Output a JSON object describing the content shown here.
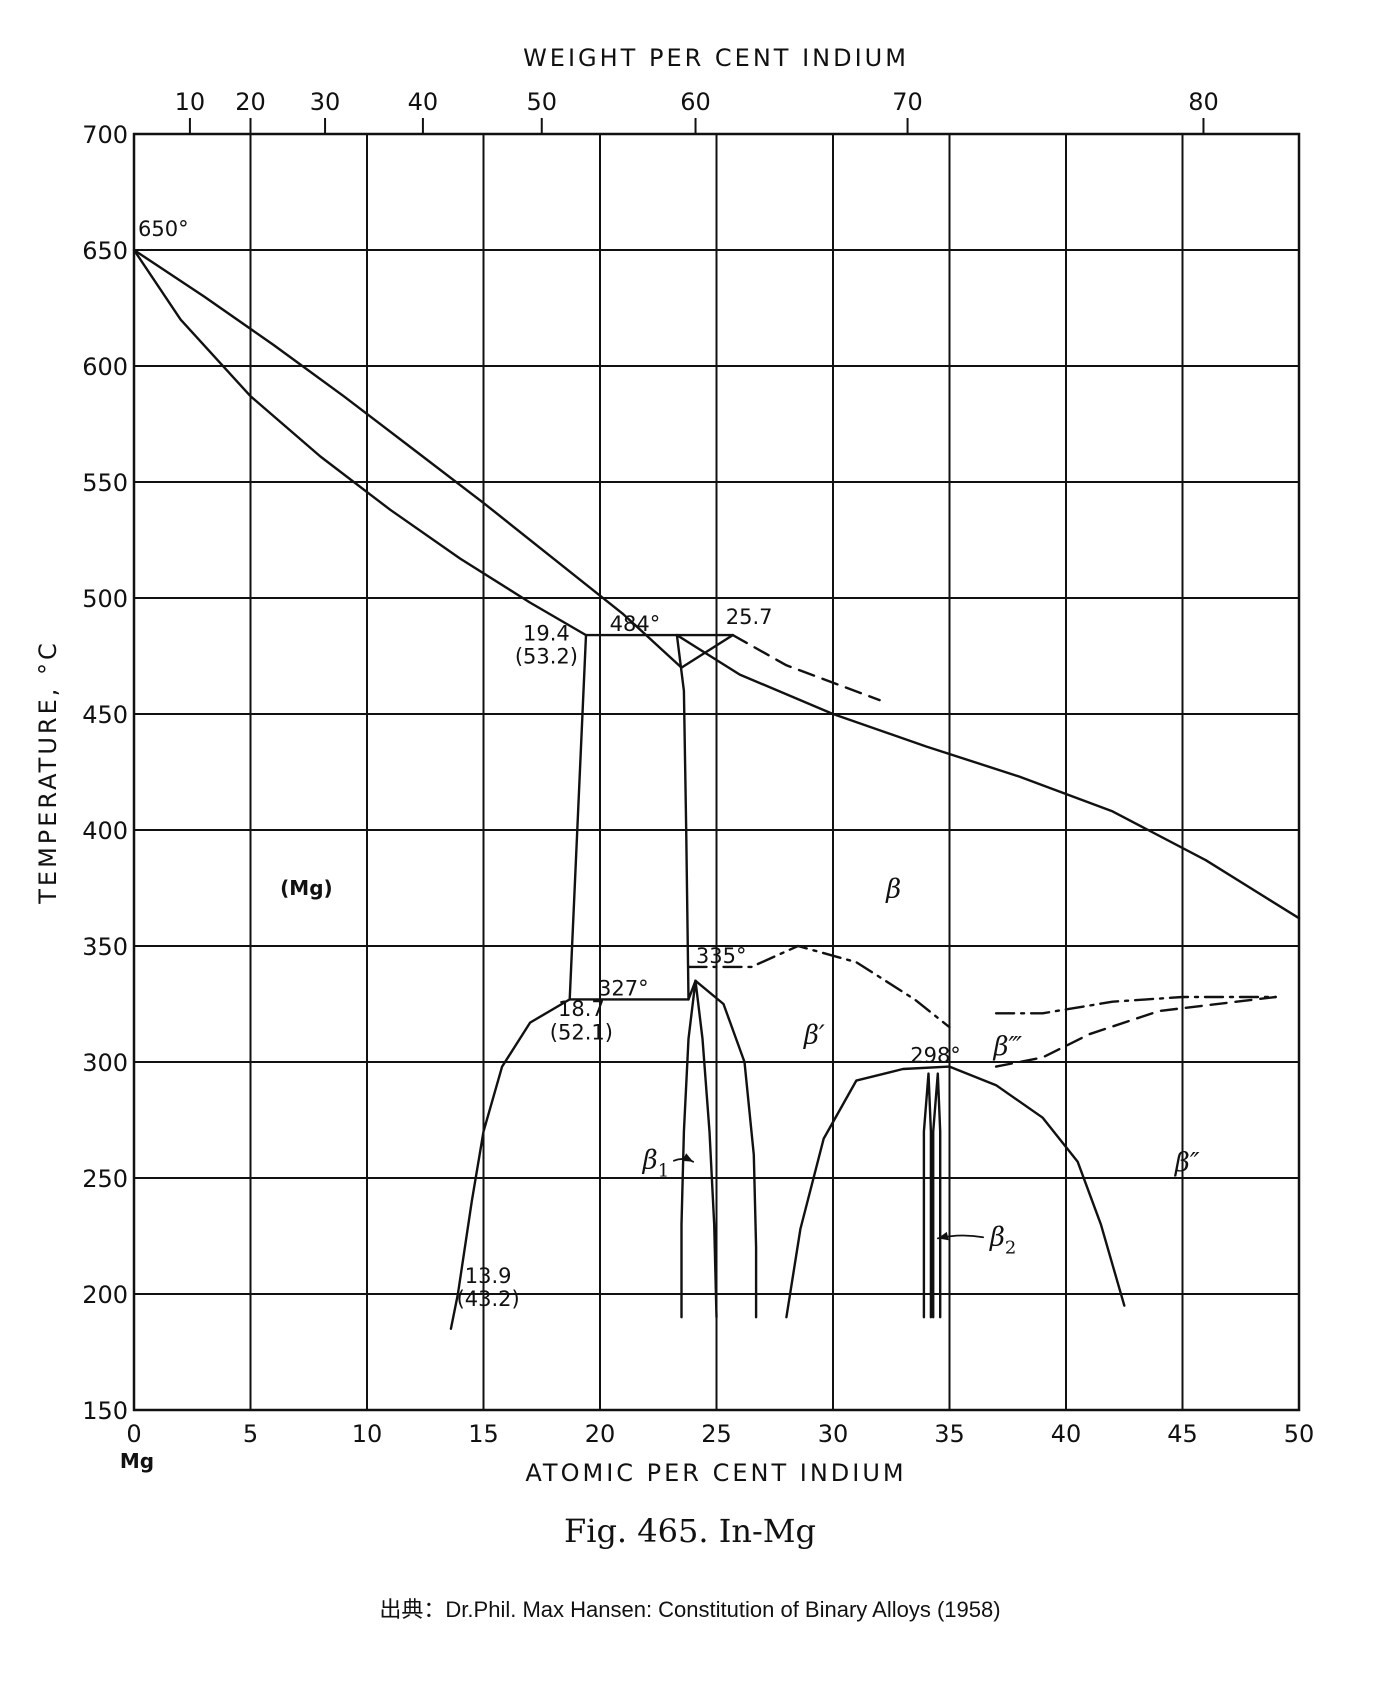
{
  "chart_data": {
    "type": "line",
    "xlabel": "ATOMIC PER CENT INDIUM",
    "ylabel": "TEMPERATURE, °C",
    "x2label": "WEIGHT PER CENT INDIUM",
    "xlim": [
      0,
      50
    ],
    "ylim": [
      150,
      700
    ],
    "grid": true,
    "x_ticks": [
      0,
      5,
      10,
      15,
      20,
      25,
      30,
      35,
      40,
      45,
      50
    ],
    "x_tick_labels": [
      "0",
      "5",
      "10",
      "15",
      "20",
      "25",
      "30",
      "35",
      "40",
      "45",
      "50"
    ],
    "x_origin_label": "Mg",
    "y_ticks": [
      150,
      200,
      250,
      300,
      350,
      400,
      450,
      500,
      550,
      600,
      650,
      700
    ],
    "y_tick_labels": [
      "150",
      "200",
      "250",
      "300",
      "350",
      "400",
      "450",
      "500",
      "550",
      "600",
      "650",
      "700"
    ],
    "top_ticks": [
      {
        "label": "10",
        "at_pct": 2.4
      },
      {
        "label": "20",
        "at_pct": 5.0
      },
      {
        "label": "30",
        "at_pct": 8.2
      },
      {
        "label": "40",
        "at_pct": 12.4
      },
      {
        "label": "50",
        "at_pct": 17.5
      },
      {
        "label": "60",
        "at_pct": 24.1
      },
      {
        "label": "70",
        "at_pct": 33.2
      },
      {
        "label": "80",
        "at_pct": 45.9
      }
    ],
    "series": [
      {
        "style": "solid",
        "points": [
          [
            0,
            650
          ],
          [
            3,
            630
          ],
          [
            6,
            609
          ],
          [
            9,
            587
          ],
          [
            12,
            564
          ],
          [
            15,
            541
          ],
          [
            18,
            517
          ],
          [
            21,
            493
          ],
          [
            23.5,
            470
          ],
          [
            25.7,
            484
          ]
        ]
      },
      {
        "style": "solid",
        "points": [
          [
            0,
            650
          ],
          [
            2,
            620
          ],
          [
            5,
            587
          ],
          [
            8,
            561
          ],
          [
            11,
            538
          ],
          [
            14,
            517
          ],
          [
            17,
            498
          ],
          [
            19.4,
            484
          ]
        ]
      },
      {
        "style": "solid",
        "points": [
          [
            19.4,
            484
          ],
          [
            25.7,
            484
          ]
        ]
      },
      {
        "style": "solid",
        "points": [
          [
            19.4,
            484
          ],
          [
            18.7,
            327
          ]
        ]
      },
      {
        "style": "solid",
        "points": [
          [
            23.3,
            484
          ],
          [
            23.6,
            460
          ],
          [
            23.7,
            400
          ],
          [
            23.8,
            327
          ]
        ]
      },
      {
        "style": "solid",
        "points": [
          [
            23.3,
            484
          ],
          [
            26,
            467
          ],
          [
            30,
            450
          ],
          [
            34,
            436
          ],
          [
            38,
            423
          ],
          [
            42,
            408
          ],
          [
            46,
            387
          ],
          [
            50,
            362
          ]
        ]
      },
      {
        "style": "dashed",
        "points": [
          [
            25.7,
            484
          ],
          [
            28,
            471
          ],
          [
            32,
            456
          ]
        ]
      },
      {
        "style": "solid",
        "points": [
          [
            18.7,
            327
          ],
          [
            23.8,
            327
          ]
        ]
      },
      {
        "style": "solid",
        "points": [
          [
            18.7,
            327
          ],
          [
            17,
            317
          ],
          [
            15.8,
            298
          ],
          [
            15,
            270
          ],
          [
            14.5,
            240
          ],
          [
            13.9,
            200
          ],
          [
            13.6,
            185
          ]
        ]
      },
      {
        "style": "solid",
        "points": [
          [
            23.8,
            327
          ],
          [
            24.1,
            335
          ]
        ]
      },
      {
        "style": "solid",
        "points": [
          [
            24.1,
            335
          ],
          [
            23.8,
            310
          ],
          [
            23.6,
            270
          ],
          [
            23.5,
            230
          ],
          [
            23.5,
            190
          ]
        ]
      },
      {
        "style": "solid",
        "points": [
          [
            24.1,
            335
          ],
          [
            24.4,
            310
          ],
          [
            24.7,
            270
          ],
          [
            24.9,
            230
          ],
          [
            25,
            190
          ]
        ]
      },
      {
        "style": "solid",
        "points": [
          [
            24.1,
            335
          ],
          [
            25.3,
            325
          ],
          [
            26.2,
            300
          ],
          [
            26.6,
            260
          ],
          [
            26.7,
            220
          ],
          [
            26.7,
            190
          ]
        ]
      },
      {
        "style": "dashdot",
        "points": [
          [
            23.8,
            341
          ],
          [
            26.5,
            341
          ],
          [
            28.5,
            350
          ],
          [
            31,
            343
          ],
          [
            33.5,
            327
          ],
          [
            35,
            315
          ]
        ]
      },
      {
        "style": "solid",
        "points": [
          [
            28,
            190
          ],
          [
            28.6,
            228
          ],
          [
            29.6,
            267
          ],
          [
            31,
            292
          ],
          [
            33,
            297
          ],
          [
            35,
            298
          ],
          [
            37,
            290
          ],
          [
            39,
            276
          ],
          [
            40.5,
            257
          ],
          [
            41.5,
            230
          ],
          [
            42.5,
            195
          ]
        ]
      },
      {
        "style": "solid",
        "points": [
          [
            33.9,
            190
          ],
          [
            33.9,
            270
          ],
          [
            34.1,
            295
          ],
          [
            34.2,
            270
          ],
          [
            34.2,
            190
          ]
        ]
      },
      {
        "style": "solid",
        "points": [
          [
            34.3,
            190
          ],
          [
            34.3,
            270
          ],
          [
            34.5,
            295
          ],
          [
            34.6,
            270
          ],
          [
            34.6,
            190
          ]
        ]
      },
      {
        "style": "dashdot",
        "points": [
          [
            37,
            321
          ],
          [
            39,
            321
          ],
          [
            42,
            326
          ],
          [
            45,
            328
          ],
          [
            49,
            328
          ]
        ]
      },
      {
        "style": "dashed",
        "points": [
          [
            37,
            298
          ],
          [
            39,
            302
          ],
          [
            41,
            312
          ],
          [
            44,
            322
          ],
          [
            49,
            328
          ]
        ]
      }
    ],
    "annotations": [
      {
        "text": "650°",
        "x": 0.0,
        "y": 650
      },
      {
        "text": "484°",
        "x": 21.5,
        "y": 484
      },
      {
        "text": "19.4",
        "x": 17.7,
        "y": 480
      },
      {
        "text": "(53.2)",
        "x": 17.7,
        "y": 470
      },
      {
        "text": "25.7",
        "x": 26.4,
        "y": 487
      },
      {
        "text": "327°",
        "x": 21.0,
        "y": 327
      },
      {
        "text": "335°",
        "x": 25.2,
        "y": 341
      },
      {
        "text": "18.7",
        "x": 19.2,
        "y": 318
      },
      {
        "text": "(52.1)",
        "x": 19.2,
        "y": 308
      },
      {
        "text": "298°",
        "x": 34.4,
        "y": 298
      },
      {
        "text": "13.9",
        "x": 15.2,
        "y": 203
      },
      {
        "text": "(43.2)",
        "x": 15.2,
        "y": 193
      }
    ],
    "phase_labels": [
      {
        "text": "(Mg)",
        "x": 7.4,
        "y": 372
      },
      {
        "text": "β",
        "x": 32.6,
        "y": 371
      },
      {
        "text": "β′",
        "x": 29.2,
        "y": 308
      },
      {
        "text": "β‴",
        "x": 37.5,
        "y": 303
      },
      {
        "text": "β″",
        "x": 45.2,
        "y": 253
      },
      {
        "text": "β1",
        "x": 22.4,
        "y": 254,
        "arrow_to": [
          24.0,
          257
        ]
      },
      {
        "text": "β2",
        "x": 37.3,
        "y": 221,
        "arrow_to": [
          34.5,
          224
        ]
      }
    ]
  },
  "caption": "Fig. 465. In-Mg",
  "source": "出典：Dr.Phil. Max Hansen: Constitution of Binary Alloys (1958)"
}
